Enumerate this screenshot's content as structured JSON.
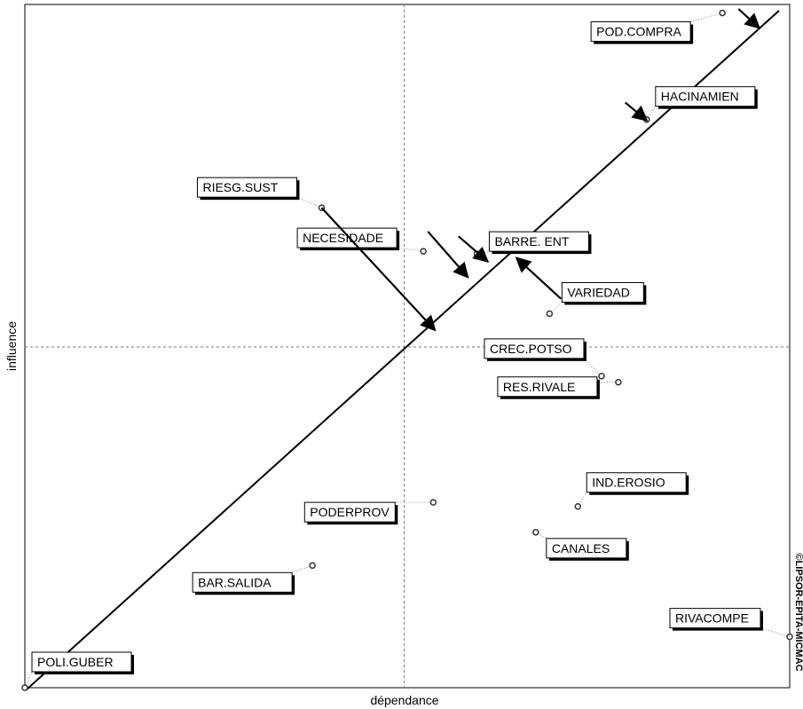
{
  "chart_data": {
    "type": "scatter",
    "subtype": "influence-dependence map (MICMAC)",
    "xlabel": "dépendance",
    "ylabel": "influence",
    "copyright": "©LIPSOR-EPITA-MICMAC",
    "xlim": [
      0,
      100
    ],
    "ylim": [
      0,
      100
    ],
    "midlines": {
      "x": 49.6,
      "y": 50.2
    },
    "grid": false,
    "diagonal": true,
    "points": [
      {
        "name": "POD.COMPRA",
        "x": 91.2,
        "y": 99.4
      },
      {
        "name": "HACINAMIEN",
        "x": 81.3,
        "y": 83.7
      },
      {
        "name": "RIESG.SUST",
        "x": 38.8,
        "y": 70.7
      },
      {
        "name": "NECESIDADE",
        "x": 52.1,
        "y": 64.3
      },
      {
        "name": "BARRE. ENT",
        "x": 59.1,
        "y": 63.9
      },
      {
        "name": "VARIEDAD",
        "x": 68.6,
        "y": 55.1
      },
      {
        "name": "CREC.POTSO",
        "x": 75.4,
        "y": 45.9
      },
      {
        "name": "RES.RIVALE",
        "x": 77.6,
        "y": 45.0
      },
      {
        "name": "IND.EROSIO",
        "x": 72.3,
        "y": 26.7
      },
      {
        "name": "PODERPROV",
        "x": 53.4,
        "y": 27.3
      },
      {
        "name": "CANALES",
        "x": 66.8,
        "y": 22.9
      },
      {
        "name": "BAR.SALIDA",
        "x": 37.6,
        "y": 18.0
      },
      {
        "name": "RIVACOMPE",
        "x": 100,
        "y": 7.5
      },
      {
        "name": "POLI.GUBER",
        "x": 0,
        "y": 0
      }
    ],
    "arrows": [
      {
        "from": [
          93.3,
          100
        ],
        "to": [
          96.0,
          97.2
        ]
      },
      {
        "from": [
          78.5,
          86.2
        ],
        "to": [
          81.3,
          83.6
        ]
      },
      {
        "from": [
          38.8,
          70.7
        ],
        "to": [
          53.6,
          52.7
        ]
      },
      {
        "from": [
          52.7,
          67.2
        ],
        "to": [
          57.9,
          60.5
        ]
      },
      {
        "from": [
          56.7,
          66.5
        ],
        "to": [
          60.5,
          62.8
        ]
      },
      {
        "from": [
          70.1,
          57.3
        ],
        "to": [
          64.3,
          63.3
        ]
      }
    ]
  }
}
